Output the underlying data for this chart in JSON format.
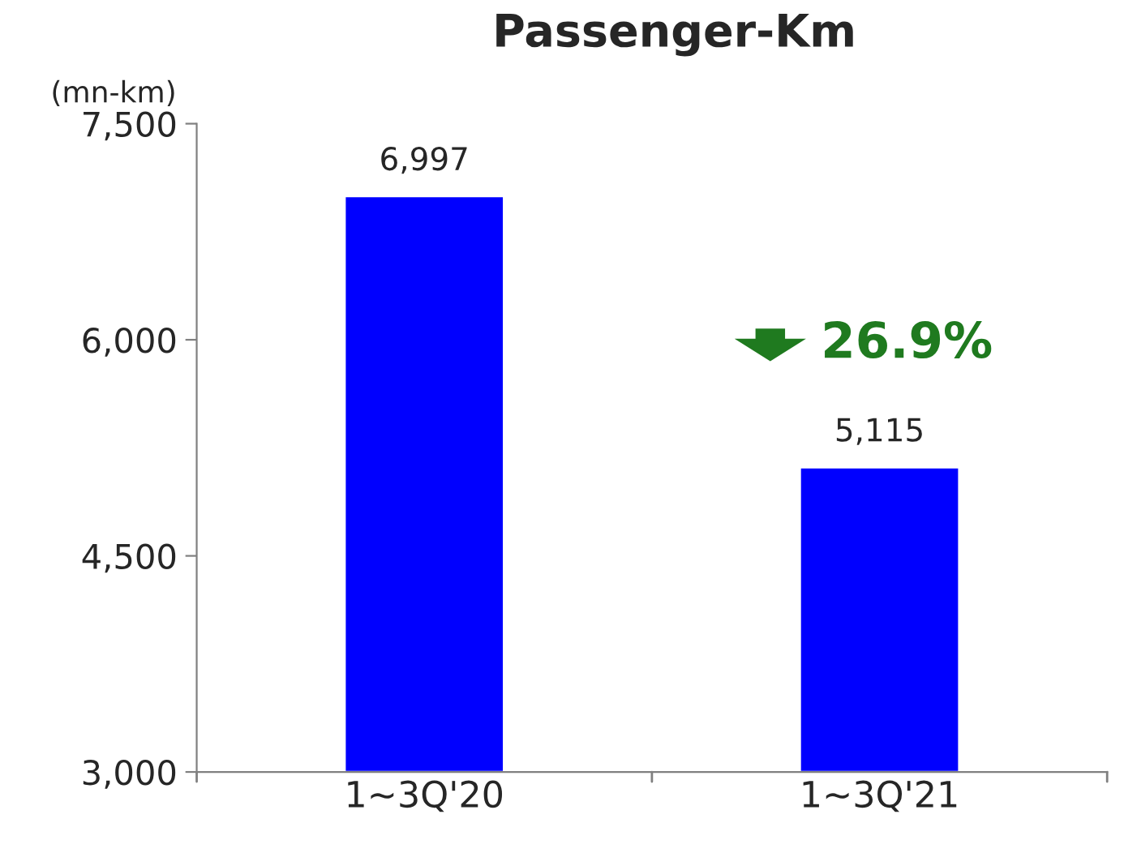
{
  "chart_data": {
    "type": "bar",
    "title": "Passenger-Km",
    "ylabel": "(mn-km)",
    "categories": [
      "1~3Q'20",
      "1~3Q'21"
    ],
    "values": [
      6997,
      5115
    ],
    "color": "#0000ff",
    "ylim": [
      3000,
      7500
    ],
    "yticks": [
      {
        "value": 3000,
        "label": "3,000"
      },
      {
        "value": 4500,
        "label": "4,500"
      },
      {
        "value": 6000,
        "label": "6,000"
      },
      {
        "value": 7500,
        "label": "7,500"
      }
    ],
    "data_labels": true,
    "value_labels": [
      "6,997",
      "5,115"
    ],
    "annotations": [
      "26.9%"
    ],
    "grid": false,
    "legend": false
  }
}
